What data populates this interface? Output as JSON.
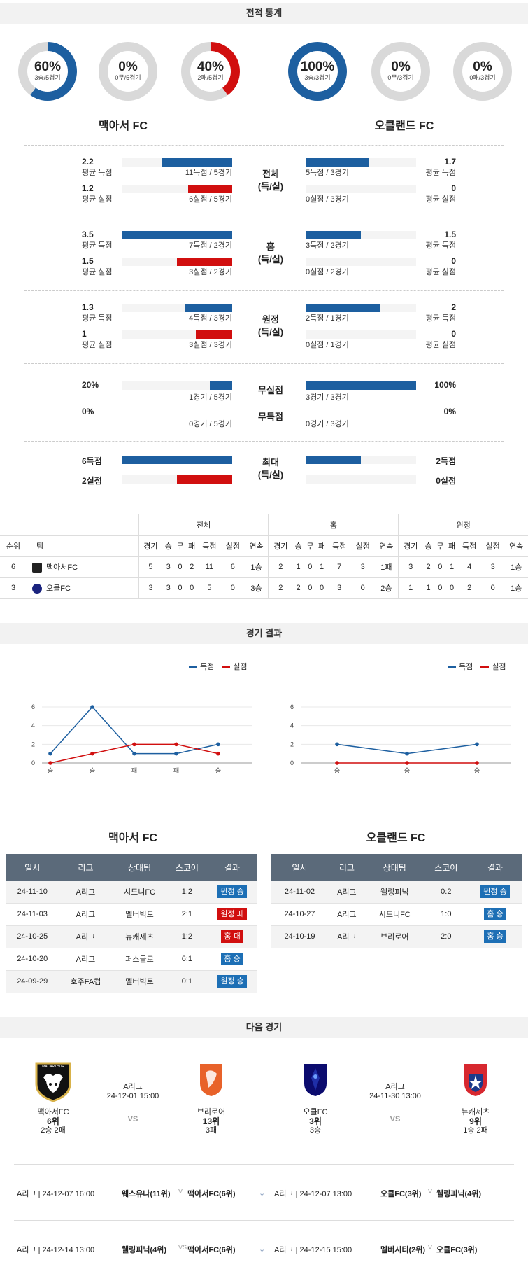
{
  "sections": {
    "stats": "전적 통계",
    "results": "경기 결과",
    "next": "다음 경기"
  },
  "colors": {
    "blue": "#1d5fa0",
    "red": "#d10f0f",
    "grey": "#d9d9d9"
  },
  "donuts": [
    {
      "pct": "60%",
      "sub": "3승/5경기",
      "color": "blue",
      "value": 60
    },
    {
      "pct": "0%",
      "sub": "0무/5경기",
      "color": "grey",
      "value": 0
    },
    {
      "pct": "40%",
      "sub": "2패/5경기",
      "color": "red",
      "value": 40
    },
    {
      "pct": "100%",
      "sub": "3승/3경기",
      "color": "blue",
      "value": 100
    },
    {
      "pct": "0%",
      "sub": "0무/3경기",
      "color": "grey",
      "value": 0
    },
    {
      "pct": "0%",
      "sub": "0패/3경기",
      "color": "grey",
      "value": 0
    }
  ],
  "teams": {
    "home": "맥아서 FC",
    "away": "오클랜드 FC"
  },
  "stat_groups": [
    {
      "label1": "전체",
      "label2": "(득/실)",
      "rows": [
        {
          "lnum": "2.2",
          "llab": "평균 득점",
          "lcnt": "11득점 / 5경기",
          "lval": 0.63,
          "lcolor": "blue",
          "rnum": "1.7",
          "rlab": "평균 득점",
          "rcnt": "5득점 / 3경기",
          "rval": 0.57,
          "rcolor": "blue"
        },
        {
          "lnum": "1.2",
          "llab": "평균 실점",
          "lcnt": "6실점 / 5경기",
          "lval": 0.4,
          "lcolor": "red",
          "rnum": "0",
          "rlab": "평균 실점",
          "rcnt": "0실점 / 3경기",
          "rval": 0,
          "rcolor": "red"
        }
      ]
    },
    {
      "label1": "홈",
      "label2": "(득/실)",
      "rows": [
        {
          "lnum": "3.5",
          "llab": "평균 득점",
          "lcnt": "7득점 / 2경기",
          "lval": 1.0,
          "lcolor": "blue",
          "rnum": "1.5",
          "rlab": "평균 득점",
          "rcnt": "3득점 / 2경기",
          "rval": 0.5,
          "rcolor": "blue"
        },
        {
          "lnum": "1.5",
          "llab": "평균 실점",
          "lcnt": "3실점 / 2경기",
          "lval": 0.5,
          "lcolor": "red",
          "rnum": "0",
          "rlab": "평균 실점",
          "rcnt": "0실점 / 2경기",
          "rval": 0,
          "rcolor": "red"
        }
      ]
    },
    {
      "label1": "원정",
      "label2": "(득/실)",
      "rows": [
        {
          "lnum": "1.3",
          "llab": "평균 득점",
          "lcnt": "4득점 / 3경기",
          "lval": 0.43,
          "lcolor": "blue",
          "rnum": "2",
          "rlab": "평균 득점",
          "rcnt": "2득점 / 1경기",
          "rval": 0.67,
          "rcolor": "blue"
        },
        {
          "lnum": "1",
          "llab": "평균 실점",
          "lcnt": "3실점 / 3경기",
          "lval": 0.33,
          "lcolor": "red",
          "rnum": "0",
          "rlab": "평균 실점",
          "rcnt": "0실점 / 1경기",
          "rval": 0,
          "rcolor": "red"
        }
      ]
    }
  ],
  "clean": [
    {
      "label": "무실점",
      "lnum": "20%",
      "lcnt": "1경기 / 5경기",
      "lval": 0.2,
      "rnum": "100%",
      "rcnt": "3경기 / 3경기",
      "rval": 1.0
    },
    {
      "label": "무득점",
      "lnum": "0%",
      "lcnt": "0경기 / 5경기",
      "lval": 0,
      "rnum": "0%",
      "rcnt": "0경기 / 3경기",
      "rval": 0
    }
  ],
  "maxrow": {
    "label1": "최대",
    "label2": "(득/실)",
    "rows": [
      {
        "lnum": "6득점",
        "lval": 1.0,
        "lcolor": "blue",
        "rnum": "2득점",
        "rval": 0.5,
        "rcolor": "blue"
      },
      {
        "lnum": "2실점",
        "lval": 0.5,
        "lcolor": "red",
        "rnum": "0실점",
        "rval": 0,
        "rcolor": "red"
      }
    ]
  },
  "standings": {
    "groups": [
      "전체",
      "홈",
      "원정"
    ],
    "head": [
      "순위",
      "팀"
    ],
    "cols": [
      "경기",
      "승",
      "무",
      "패",
      "득점",
      "실점",
      "연속"
    ],
    "rows": [
      {
        "rank": "6",
        "team": "맥아서FC",
        "logo": "bull-logo",
        "all": [
          "5",
          "3",
          "0",
          "2",
          "11",
          "6",
          "1승"
        ],
        "home": [
          "2",
          "1",
          "0",
          "1",
          "7",
          "3",
          "1패"
        ],
        "away": [
          "3",
          "2",
          "0",
          "1",
          "4",
          "3",
          "1승"
        ]
      },
      {
        "rank": "3",
        "team": "오클FC",
        "logo": "shield-logo",
        "all": [
          "3",
          "3",
          "0",
          "0",
          "5",
          "0",
          "3승"
        ],
        "home": [
          "2",
          "2",
          "0",
          "0",
          "3",
          "0",
          "2승"
        ],
        "away": [
          "1",
          "1",
          "0",
          "0",
          "2",
          "0",
          "1승"
        ]
      }
    ]
  },
  "chart_data": [
    {
      "type": "line",
      "x": [
        "승",
        "승",
        "패",
        "패",
        "승"
      ],
      "ylim": [
        0,
        6
      ],
      "yticks": [
        0,
        2,
        4,
        6
      ],
      "series": [
        {
          "name": "득점",
          "values": [
            1,
            6,
            1,
            1,
            2
          ]
        },
        {
          "name": "실점",
          "values": [
            0,
            1,
            2,
            2,
            1
          ]
        }
      ]
    },
    {
      "type": "line",
      "x": [
        "승",
        "승",
        "승"
      ],
      "ylim": [
        0,
        6
      ],
      "yticks": [
        0,
        2,
        4,
        6
      ],
      "series": [
        {
          "name": "득점",
          "values": [
            2,
            1,
            2
          ]
        },
        {
          "name": "실점",
          "values": [
            0,
            0,
            0
          ]
        }
      ]
    }
  ],
  "results": {
    "headers": [
      "일시",
      "리그",
      "상대팀",
      "스코어",
      "결과"
    ],
    "home": [
      [
        "24-11-10",
        "A리그",
        "시드니FC",
        "1:2",
        "원정 승",
        "blue"
      ],
      [
        "24-11-03",
        "A리그",
        "멜버빅토",
        "2:1",
        "원정 패",
        "red"
      ],
      [
        "24-10-25",
        "A리그",
        "뉴캐제츠",
        "1:2",
        "홈 패",
        "red"
      ],
      [
        "24-10-20",
        "A리그",
        "퍼스글로",
        "6:1",
        "홈 승",
        "blue"
      ],
      [
        "24-09-29",
        "호주FA컵",
        "멜버빅토",
        "0:1",
        "원정 승",
        "blue"
      ]
    ],
    "away": [
      [
        "24-11-02",
        "A리그",
        "웰링피닉",
        "0:2",
        "원정 승",
        "blue"
      ],
      [
        "24-10-27",
        "A리그",
        "시드니FC",
        "1:0",
        "홈 승",
        "blue"
      ],
      [
        "24-10-19",
        "A리그",
        "브리로어",
        "2:0",
        "홈 승",
        "blue"
      ]
    ]
  },
  "next": {
    "left": {
      "league": "A리그",
      "time": "24-12-01 15:00",
      "vs": "VS",
      "t1": {
        "name": "맥아서FC",
        "rank": "6위",
        "rec": "2승 2패",
        "logo_text": "MACARTHUR"
      },
      "t2": {
        "name": "브리로어",
        "rank": "13위",
        "rec": "3패"
      }
    },
    "right": {
      "league": "A리그",
      "time": "24-11-30 13:00",
      "vs": "VS",
      "t1": {
        "name": "오클FC",
        "rank": "3위",
        "rec": "3승"
      },
      "t2": {
        "name": "뉴캐제츠",
        "rank": "9위",
        "rec": "1승 2패"
      }
    }
  },
  "schedule": [
    {
      "l_info": "A리그 | 24-12-07 16:00",
      "l_match": "웨스유나(11위)",
      "l_vs": "V",
      "l_team": "맥아서FC(6위)",
      "r_info": "A리그 | 24-12-07 13:00",
      "r_team": "오클FC(3위)",
      "r_vs": "V",
      "r_match": "웰링피닉(4위)"
    },
    {
      "l_info": "A리그 | 24-12-14 13:00",
      "l_match": "웰링피닉(4위)",
      "l_vs": "VS",
      "l_team": "맥아서FC(6위)",
      "r_info": "A리그 | 24-12-15 15:00",
      "r_team": "멜버시티(2위)",
      "r_vs": "V",
      "r_match": "오클FC(3위)"
    }
  ]
}
